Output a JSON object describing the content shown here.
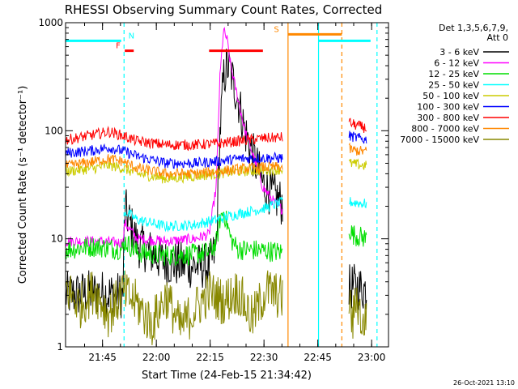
{
  "chart_data": {
    "type": "line",
    "title": "RHESSI Observing Summary Count Rates, Corrected",
    "xlabel": "Start Time (24-Feb-15 21:34:42)",
    "ylabel": "Corrected Count Rate (s⁻¹ detector⁻¹)",
    "x_unit": "minutes after 21:34:42",
    "xlim": [
      0,
      90
    ],
    "ylim": [
      1,
      1000
    ],
    "yscale": "log",
    "grid": false,
    "legend_position": "right",
    "x_ticks": [
      {
        "value": 10.3,
        "label": "21:45"
      },
      {
        "value": 25.3,
        "label": "22:00"
      },
      {
        "value": 40.3,
        "label": "22:15"
      },
      {
        "value": 55.3,
        "label": "22:30"
      },
      {
        "value": 70.3,
        "label": "22:45"
      },
      {
        "value": 85.3,
        "label": "23:00"
      }
    ],
    "y_ticks": [
      {
        "value": 1,
        "label": "1"
      },
      {
        "value": 10,
        "label": "10"
      },
      {
        "value": 100,
        "label": "100"
      },
      {
        "value": 1000,
        "label": "1000"
      }
    ],
    "legend_header": [
      "Det 1,3,5,6,7,9,",
      "Att 0"
    ],
    "series": [
      {
        "name": "3 - 6 keV",
        "color": "#000000",
        "segments": [
          {
            "x": [
              0,
              8,
              16,
              16.5,
              20,
              28,
              36,
              40,
              42,
              43,
              44,
              45,
              46,
              48,
              50,
              53,
              55,
              58,
              60,
              60.6
            ],
            "y": [
              3.0,
              3.2,
              3.0,
              19,
              9.0,
              6.0,
              5.6,
              5.6,
              8.0,
              90,
              300,
              400,
              350,
              200,
              100,
              50,
              32,
              25,
              22,
              21
            ]
          },
          {
            "x": [
              79,
              80,
              84
            ],
            "y": [
              3.5,
              3.6,
              3.4
            ]
          }
        ]
      },
      {
        "name": "6 - 12 keV",
        "color": "#ff00ff",
        "segments": [
          {
            "x": [
              0,
              8,
              16,
              16.5,
              20,
              28,
              36,
              40,
              42,
              43,
              44,
              45,
              46,
              48,
              50,
              53,
              55,
              58,
              60,
              60.6
            ],
            "y": [
              9.5,
              9.5,
              9.2,
              14,
              10,
              9.5,
              10,
              11,
              30,
              300,
              850,
              700,
              400,
              200,
              100,
              50,
              30,
              22,
              19,
              19
            ]
          }
        ]
      },
      {
        "name": "12 - 25 keV",
        "color": "#00dd00",
        "segments": [
          {
            "x": [
              0,
              8,
              16,
              16.5,
              20,
              28,
              36,
              40,
              42,
              43,
              44,
              45,
              46,
              48,
              55,
              60.6
            ],
            "y": [
              8.0,
              8.5,
              8.0,
              9.5,
              7.5,
              7.0,
              7.2,
              7.5,
              9.0,
              15,
              18,
              14,
              10,
              8.0,
              7.8,
              7.5
            ]
          },
          {
            "x": [
              79,
              80,
              84
            ],
            "y": [
              12.5,
              11,
              10
            ]
          }
        ]
      },
      {
        "name": "25 - 50 keV",
        "color": "#00ffff",
        "segments": [
          {
            "x": [
              16.5,
              20,
              28,
              36,
              42,
              48,
              55,
              60.6
            ],
            "y": [
              18,
              15,
              13,
              13.5,
              15,
              17,
              19,
              22
            ]
          },
          {
            "x": [
              79,
              84
            ],
            "y": [
              22,
              21
            ]
          }
        ]
      },
      {
        "name": "50 - 100 keV",
        "color": "#cccc00",
        "segments": [
          {
            "x": [
              0,
              8,
              12,
              16,
              20,
              28,
              36,
              42,
              48,
              55,
              60.6
            ],
            "y": [
              42,
              45,
              48,
              45,
              40,
              36,
              38,
              40,
              42,
              43,
              44
            ]
          },
          {
            "x": [
              79,
              84
            ],
            "y": [
              50,
              47
            ]
          }
        ]
      },
      {
        "name": "100 - 300 keV",
        "color": "#0000ff",
        "segments": [
          {
            "x": [
              0,
              8,
              12,
              16,
              20,
              28,
              36,
              42,
              48,
              55,
              60.6
            ],
            "y": [
              62,
              66,
              70,
              65,
              58,
              50,
              50,
              52,
              55,
              56,
              56
            ]
          },
          {
            "x": [
              79,
              80,
              84
            ],
            "y": [
              90,
              88,
              82
            ]
          }
        ]
      },
      {
        "name": "300 - 800 keV",
        "color": "#ff0000",
        "segments": [
          {
            "x": [
              0,
              8,
              12,
              16,
              20,
              28,
              36,
              42,
              48,
              55,
              60.6
            ],
            "y": [
              82,
              92,
              98,
              90,
              80,
              74,
              74,
              76,
              80,
              85,
              87
            ]
          },
          {
            "x": [
              79,
              80,
              84
            ],
            "y": [
              120,
              115,
              105
            ]
          }
        ]
      },
      {
        "name": "800 - 7000 keV",
        "color": "#ff8800",
        "segments": [
          {
            "x": [
              0,
              8,
              12,
              16,
              20,
              28,
              36,
              42,
              48,
              55,
              60.6
            ],
            "y": [
              47,
              52,
              55,
              52,
              45,
              40,
              40,
              42,
              44,
              46,
              46
            ]
          },
          {
            "x": [
              79,
              80,
              84
            ],
            "y": [
              68,
              66,
              64
            ]
          }
        ]
      },
      {
        "name": "7000 - 15000 keV",
        "color": "#888800",
        "segments": [
          {
            "x": [
              0,
              4,
              8,
              12,
              16,
              20,
              24,
              28,
              32,
              36,
              40,
              44,
              48,
              52,
              56,
              60.6
            ],
            "y": [
              3.5,
              2.4,
              3.4,
              2.0,
              3.2,
              2.5,
              1.6,
              3.0,
              1.5,
              2.2,
              3.2,
              2.6,
              3.3,
              1.8,
              3.4,
              2.8
            ]
          },
          {
            "x": [
              79,
              80,
              81,
              82,
              83,
              84
            ],
            "y": [
              2.8,
              1.6,
              3.0,
              2.1,
              1.4,
              2.5
            ]
          }
        ]
      }
    ],
    "state_bars": [
      {
        "name": "N",
        "label": "N",
        "color": "#00ffff",
        "y": 680,
        "segments": [
          [
            0,
            15.5
          ],
          [
            70.5,
            85
          ]
        ],
        "label_x": 17.5,
        "label_side": "right"
      },
      {
        "name": "F",
        "label": "F",
        "color": "#ff0000",
        "y": 550,
        "segments": [
          [
            16.5,
            19
          ],
          [
            40,
            55
          ]
        ],
        "label_x": 15.3,
        "label_side": "left"
      },
      {
        "name": "S",
        "label": "S",
        "color": "#ff8800",
        "y": 780,
        "segments": [
          [
            62,
            77
          ]
        ],
        "label_x": 59.5,
        "label_side": "left"
      }
    ],
    "vertical_markers": [
      {
        "x": 16.3,
        "color": "#00ffff",
        "style": "dashed"
      },
      {
        "x": 62,
        "color": "#ff8800",
        "style": "solid"
      },
      {
        "x": 70.5,
        "color": "#00ffff",
        "style": "solid"
      },
      {
        "x": 77,
        "color": "#ff8800",
        "style": "dashed"
      },
      {
        "x": 86.8,
        "color": "#00ffff",
        "style": "dashed"
      }
    ]
  },
  "footer": {
    "timestamp": "26-Oct-2021 13:10"
  }
}
